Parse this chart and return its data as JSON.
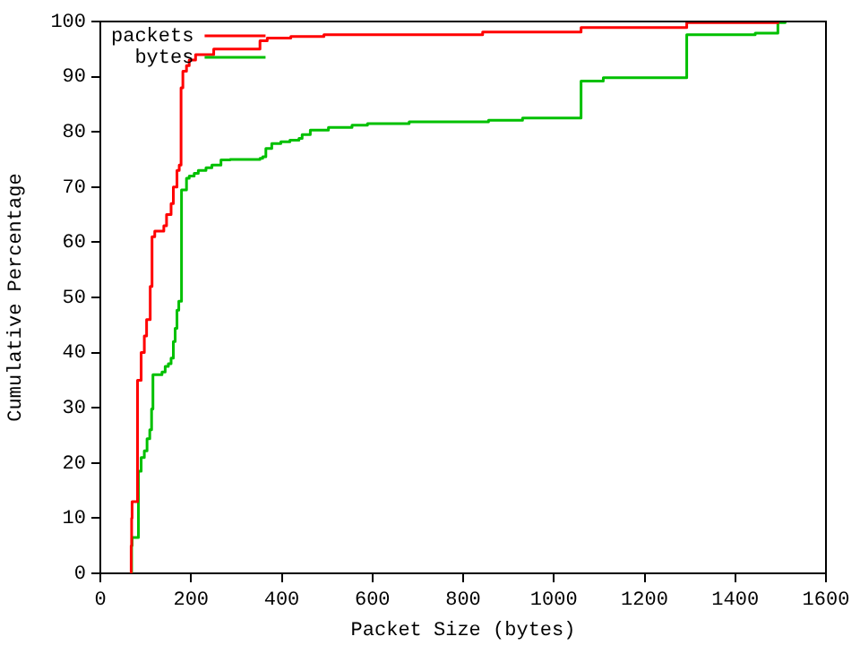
{
  "chart_data": {
    "type": "step",
    "xlabel": "Packet Size (bytes)",
    "ylabel": "Cumulative Percentage",
    "xlim": [
      0,
      1600
    ],
    "xticks": [
      0,
      200,
      400,
      600,
      800,
      1000,
      1200,
      1400,
      1600
    ],
    "ylim": [
      0,
      100
    ],
    "yticks": [
      0,
      10,
      20,
      30,
      40,
      50,
      60,
      70,
      80,
      90,
      100
    ],
    "grid": false,
    "legend": "top left",
    "marker": "none",
    "line_style": "solid",
    "series": [
      {
        "name": "packets",
        "color": "#ff0000",
        "x": [
          68,
          68,
          69,
          70,
          82,
          90,
          97,
          102,
          110,
          114,
          120,
          140,
          146,
          156,
          161,
          169,
          174,
          178,
          182,
          190,
          196,
          210,
          250,
          352,
          368,
          420,
          493,
          843,
          1060,
          1293,
          1494
        ],
        "values": [
          0,
          5,
          10,
          13,
          35,
          40,
          43,
          46,
          52,
          61,
          62,
          63,
          65,
          67,
          70,
          73,
          74,
          88,
          91,
          92,
          93,
          94,
          95,
          96.5,
          97,
          97.3,
          97.6,
          98.1,
          98.9,
          99.8,
          100
        ]
      },
      {
        "name": "bytes",
        "color": "#00c000",
        "x": [
          68,
          69,
          70,
          84,
          90,
          97,
          103,
          109,
          113,
          116,
          136,
          143,
          150,
          156,
          161,
          165,
          169,
          173,
          179,
          190,
          196,
          207,
          216,
          233,
          246,
          266,
          286,
          352,
          358,
          365,
          378,
          398,
          418,
          438,
          445,
          463,
          503,
          555,
          589,
          681,
          856,
          931,
          1060,
          1109,
          1293,
          1444,
          1494,
          1510
        ],
        "values": [
          0,
          5,
          6.5,
          18.5,
          21,
          22.2,
          24.4,
          26,
          29.8,
          36,
          36.5,
          37.5,
          38,
          39,
          42,
          44.4,
          47.7,
          49.3,
          69.5,
          71.6,
          72,
          72.5,
          73,
          73.5,
          74,
          74.9,
          75,
          75.2,
          75.5,
          77,
          77.9,
          78.2,
          78.5,
          78.8,
          79.5,
          80.3,
          80.8,
          81.2,
          81.5,
          81.8,
          82.1,
          82.5,
          89.2,
          89.8,
          97.6,
          97.9,
          99.8,
          100
        ]
      }
    ]
  }
}
